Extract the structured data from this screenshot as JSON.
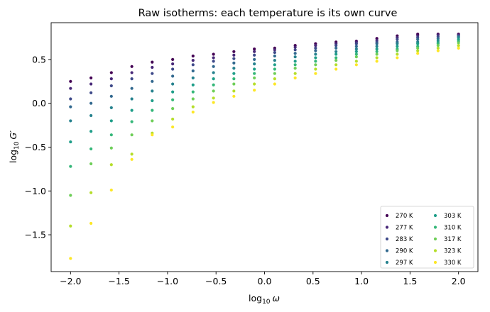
{
  "chart_data": {
    "type": "scatter",
    "title": "Raw isotherms: each temperature is its own curve",
    "xlabel": {
      "prefix": "log",
      "sub": "10",
      "symbol": "ω"
    },
    "ylabel": {
      "prefix": "log",
      "sub": "10",
      "symbol": "G′"
    },
    "xlim": [
      -2.2,
      2.2
    ],
    "ylim": [
      -1.92,
      0.92
    ],
    "xticks": [
      -2.0,
      -1.5,
      -1.0,
      -0.5,
      0.0,
      0.5,
      1.0,
      1.5,
      2.0
    ],
    "xtick_labels": [
      "−2.0",
      "−1.5",
      "−1.0",
      "−0.5",
      "0.0",
      "0.5",
      "1.0",
      "1.5",
      "2.0"
    ],
    "yticks": [
      -1.5,
      -1.0,
      -0.5,
      0.0,
      0.5
    ],
    "ytick_labels": [
      "−1.5",
      "−1.0",
      "−0.5",
      "0.0",
      "0.5"
    ],
    "grid": false,
    "legend_position": "lower right",
    "legend_columns": 2,
    "x": [
      -2.0,
      -1.789,
      -1.579,
      -1.368,
      -1.158,
      -0.947,
      -0.737,
      -0.526,
      -0.316,
      -0.105,
      0.105,
      0.316,
      0.526,
      0.737,
      0.947,
      1.158,
      1.368,
      1.579,
      1.789,
      2.0
    ],
    "series": [
      {
        "name": "270 K",
        "color": "#440154",
        "y": [
          0.25,
          0.29,
          0.35,
          0.42,
          0.47,
          0.5,
          0.54,
          0.56,
          0.59,
          0.62,
          0.63,
          0.66,
          0.68,
          0.7,
          0.71,
          0.74,
          0.77,
          0.79,
          0.79,
          0.79
        ]
      },
      {
        "name": "277 K",
        "color": "#482878",
        "y": [
          0.17,
          0.22,
          0.28,
          0.35,
          0.41,
          0.45,
          0.49,
          0.52,
          0.55,
          0.59,
          0.61,
          0.64,
          0.66,
          0.68,
          0.7,
          0.72,
          0.75,
          0.77,
          0.78,
          0.78
        ]
      },
      {
        "name": "283 K",
        "color": "#3e4989",
        "y": [
          0.05,
          0.12,
          0.2,
          0.28,
          0.34,
          0.39,
          0.44,
          0.48,
          0.51,
          0.55,
          0.58,
          0.61,
          0.63,
          0.66,
          0.68,
          0.7,
          0.73,
          0.75,
          0.76,
          0.77
        ]
      },
      {
        "name": "290 K",
        "color": "#31688e",
        "y": [
          -0.04,
          0.0,
          0.08,
          0.17,
          0.25,
          0.31,
          0.37,
          0.42,
          0.46,
          0.5,
          0.54,
          0.57,
          0.6,
          0.63,
          0.65,
          0.68,
          0.7,
          0.73,
          0.74,
          0.76
        ]
      },
      {
        "name": "297 K",
        "color": "#26828e",
        "y": [
          -0.2,
          -0.14,
          -0.05,
          0.05,
          0.14,
          0.22,
          0.29,
          0.35,
          0.4,
          0.45,
          0.49,
          0.53,
          0.56,
          0.59,
          0.62,
          0.65,
          0.68,
          0.7,
          0.72,
          0.75
        ]
      },
      {
        "name": "303 K",
        "color": "#1f9e89",
        "y": [
          -0.44,
          -0.32,
          -0.2,
          -0.08,
          0.03,
          0.13,
          0.21,
          0.28,
          0.34,
          0.39,
          0.44,
          0.48,
          0.52,
          0.56,
          0.59,
          0.62,
          0.65,
          0.68,
          0.7,
          0.73
        ]
      },
      {
        "name": "310 K",
        "color": "#35b779",
        "y": [
          -0.72,
          -0.52,
          -0.36,
          -0.21,
          -0.08,
          0.04,
          0.13,
          0.21,
          0.28,
          0.34,
          0.39,
          0.44,
          0.48,
          0.52,
          0.56,
          0.59,
          0.62,
          0.65,
          0.68,
          0.71
        ]
      },
      {
        "name": "317 K",
        "color": "#6ece58",
        "y": [
          -1.05,
          -0.69,
          -0.51,
          -0.36,
          -0.2,
          -0.06,
          0.05,
          0.14,
          0.22,
          0.29,
          0.34,
          0.4,
          0.44,
          0.49,
          0.53,
          0.56,
          0.6,
          0.63,
          0.66,
          0.69
        ]
      },
      {
        "name": "323 K",
        "color": "#b5de2b",
        "y": [
          -1.4,
          -1.02,
          -0.7,
          -0.58,
          -0.34,
          -0.18,
          -0.04,
          0.06,
          0.14,
          0.22,
          0.28,
          0.34,
          0.39,
          0.44,
          0.48,
          0.52,
          0.56,
          0.6,
          0.63,
          0.66
        ]
      },
      {
        "name": "330 K",
        "color": "#fde725",
        "y": [
          -1.77,
          -1.37,
          -0.99,
          -0.64,
          -0.36,
          -0.27,
          -0.1,
          0.01,
          0.08,
          0.15,
          0.22,
          0.29,
          0.34,
          0.39,
          0.44,
          0.48,
          0.52,
          0.57,
          0.6,
          0.63
        ]
      }
    ]
  }
}
